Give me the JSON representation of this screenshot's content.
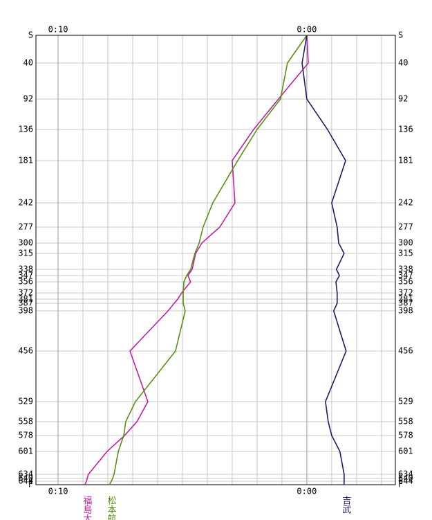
{
  "chart_data": {
    "type": "line",
    "ylim": [
      0,
      649
    ],
    "yticks": [
      {
        "value": 0,
        "label": "S"
      },
      40,
      92,
      136,
      181,
      242,
      277,
      300,
      315,
      338,
      347,
      356,
      372,
      381,
      387,
      398,
      456,
      529,
      558,
      578,
      601,
      634,
      640,
      644,
      {
        "value": 649,
        "label": "F"
      }
    ],
    "xlim": [
      10.89,
      -3.56
    ],
    "xticks": [
      {
        "value": 10,
        "label": "0:10"
      },
      {
        "value": 0,
        "label": "0:00"
      }
    ],
    "xgrid": [
      10,
      9,
      8,
      7,
      6,
      5,
      4,
      3,
      2,
      1,
      0,
      -1,
      -2,
      -3
    ],
    "grid": true,
    "series": [
      {
        "name": "福島大",
        "color": "#c020a0",
        "values": [
          0,
          -0.06,
          1.14,
          2.14,
          3,
          2.89,
          3.5,
          4.22,
          4.47,
          4.61,
          4.78,
          4.67,
          5.03,
          5.19,
          5.33,
          5.58,
          7.11,
          6.39,
          6.83,
          7.33,
          8.03,
          8.78,
          8.83,
          8.86,
          8.92
        ]
      },
      {
        "name": "松本航",
        "color": "#5a9010",
        "values": [
          0,
          0.78,
          1.06,
          2,
          2.78,
          3.78,
          4.17,
          4.33,
          4.5,
          4.67,
          4.83,
          4.94,
          4.97,
          4.97,
          4.97,
          4.89,
          5.28,
          6.89,
          7.28,
          7.36,
          7.58,
          7.75,
          7.81,
          7.86,
          7.94
        ]
      },
      {
        "name": "吉武",
        "color": "#1c1c6c",
        "values": [
          0,
          0.19,
          0,
          -0.83,
          -1.56,
          -1,
          -1.22,
          -1.28,
          -1.5,
          -1.19,
          -1.31,
          -1.17,
          -1.22,
          -1.22,
          -1.22,
          -1.08,
          -1.58,
          -0.75,
          -0.86,
          -1,
          -1.33,
          -1.5,
          -1.5,
          -1.5,
          -1.5
        ]
      }
    ]
  }
}
